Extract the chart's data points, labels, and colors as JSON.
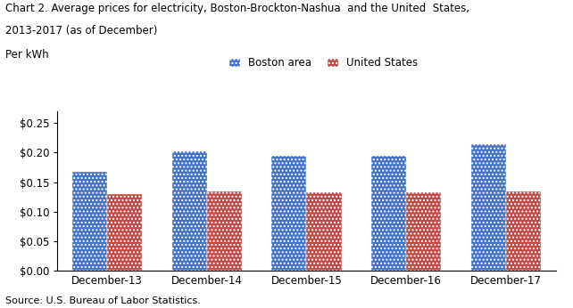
{
  "title_line1": "Chart 2. Average prices for electricity, Boston-Brockton-Nashua  and the United  States,",
  "title_line2": "2013-2017 (as of December)",
  "ylabel": "Per kWh",
  "source": "Source: U.S. Bureau of Labor Statistics.",
  "categories": [
    "December-13",
    "December-14",
    "December-15",
    "December-16",
    "December-17"
  ],
  "boston_values": [
    0.168,
    0.202,
    0.194,
    0.195,
    0.214
  ],
  "us_values": [
    0.13,
    0.134,
    0.133,
    0.133,
    0.135
  ],
  "boston_color": "#4472C4",
  "us_color": "#BE4B48",
  "boston_label": "Boston area",
  "us_label": "United States",
  "ylim": [
    0,
    0.27
  ],
  "yticks": [
    0.0,
    0.05,
    0.1,
    0.15,
    0.2,
    0.25
  ],
  "bar_width": 0.35,
  "figsize": [
    6.42,
    3.46
  ],
  "dpi": 100
}
